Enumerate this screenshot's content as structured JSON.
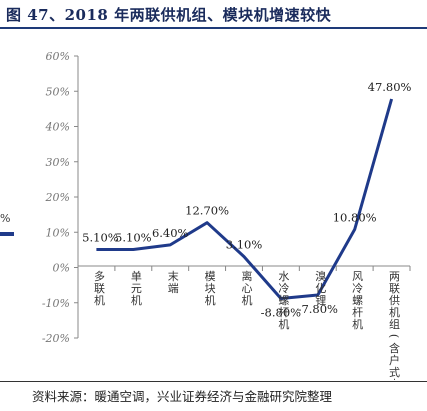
{
  "figure": {
    "title": "图 47、2018 年两联供机组、模块机增速较快",
    "source": "资料来源：暖通空调，兴业证券经济与金融研究院整理",
    "legend_fragment": "%"
  },
  "colors": {
    "line": "#1f3a8a",
    "title": "#1a2b5c",
    "rule": "#1e3a78"
  },
  "chart_data": {
    "type": "line",
    "title": "",
    "xlabel": "",
    "ylabel": "",
    "ylim": [
      -20,
      60
    ],
    "yticks": [
      -20,
      -10,
      0,
      10,
      20,
      30,
      40,
      50,
      60
    ],
    "ytick_labels": [
      "-20%",
      "-10%",
      "0%",
      "10%",
      "20%",
      "30%",
      "40%",
      "50%",
      "60%"
    ],
    "grid": false,
    "categories": [
      "多联机",
      "单元机",
      "末端",
      "模块机",
      "离心机",
      "水冷螺杆机",
      "溴化锂",
      "风冷螺杆机",
      "两联供机组(含户式水机)"
    ],
    "values": [
      5.1,
      5.1,
      6.4,
      12.7,
      3.1,
      -8.8,
      -7.8,
      10.8,
      47.8
    ],
    "data_labels": [
      "5.10%",
      "5.10%",
      "6.40%",
      "12.70%",
      "3.10%",
      "-8.80%",
      "-7.80%",
      "10.80%",
      "47.80%"
    ]
  }
}
